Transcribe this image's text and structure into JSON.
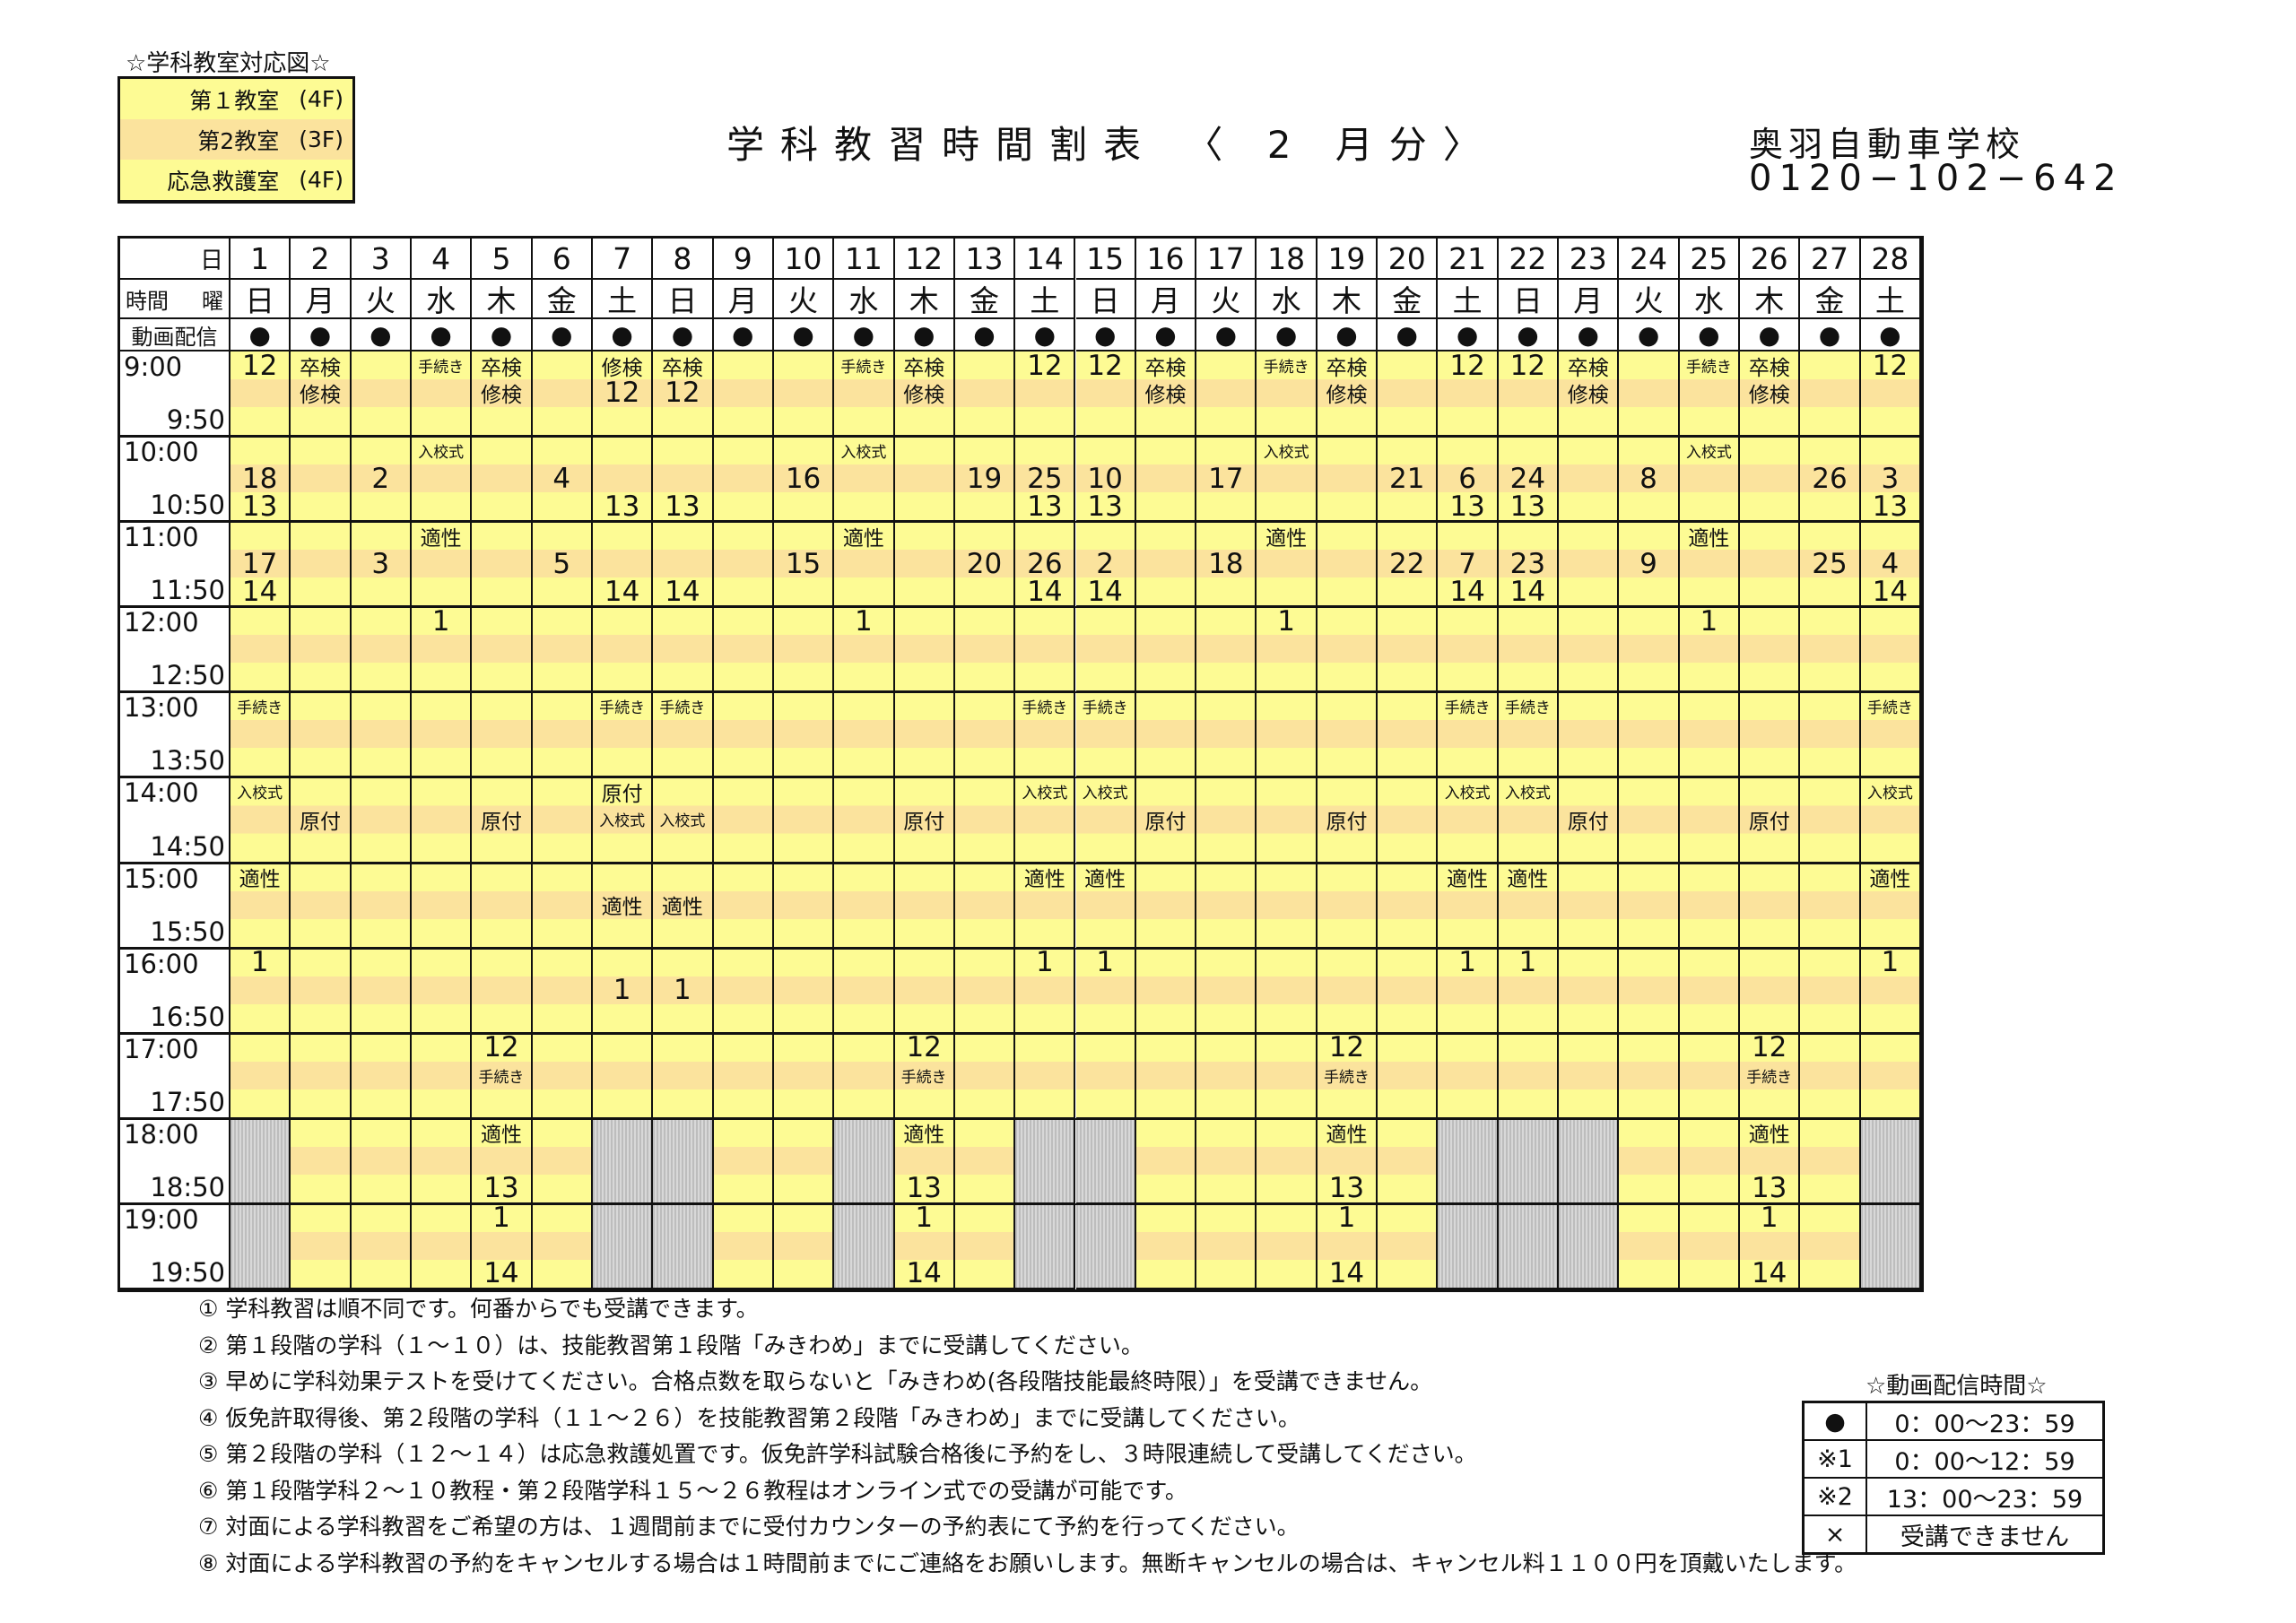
{
  "room_legend": {
    "caption": "☆学科教室対応図☆",
    "rooms": [
      {
        "name": "第１教室",
        "floor": "(4F)"
      },
      {
        "name": "第2教室",
        "floor": "(3F)"
      },
      {
        "name": "応急救護室",
        "floor": "(4F)"
      }
    ]
  },
  "header": {
    "title": "学科教習時間割表 〈 2 月分〉",
    "school": "奥羽自動車学校",
    "phone": "0120−102−642"
  },
  "grid": {
    "corner": {
      "day_label": "日",
      "time_label": "時間",
      "weekday_label": "曜",
      "video_label": "動画配信"
    },
    "days": [
      "1",
      "2",
      "3",
      "4",
      "5",
      "6",
      "7",
      "8",
      "9",
      "10",
      "11",
      "12",
      "13",
      "14",
      "15",
      "16",
      "17",
      "18",
      "19",
      "20",
      "21",
      "22",
      "23",
      "24",
      "25",
      "26",
      "27",
      "28"
    ],
    "weekdays": [
      "日",
      "月",
      "火",
      "水",
      "木",
      "金",
      "土",
      "日",
      "月",
      "火",
      "水",
      "木",
      "金",
      "土",
      "日",
      "月",
      "火",
      "水",
      "木",
      "金",
      "土",
      "日",
      "月",
      "火",
      "水",
      "木",
      "金",
      "土"
    ],
    "video_mark": "●",
    "slots": [
      {
        "start": "9:00",
        "end": "9:50",
        "gray_days": [],
        "cells": {
          "1": [
            "12",
            "",
            ""
          ],
          "2": [
            "卒検",
            "修検",
            ""
          ],
          "4": [
            "手続き",
            "",
            ""
          ],
          "5": [
            "卒検",
            "修検",
            ""
          ],
          "7": [
            "修検",
            "12",
            ""
          ],
          "8": [
            "卒検",
            "12",
            ""
          ],
          "11": [
            "手続き",
            "",
            ""
          ],
          "12": [
            "卒検",
            "修検",
            ""
          ],
          "14": [
            "12",
            "",
            ""
          ],
          "15": [
            "12",
            "",
            ""
          ],
          "16": [
            "卒検",
            "修検",
            ""
          ],
          "18": [
            "手続き",
            "",
            ""
          ],
          "19": [
            "卒検",
            "修検",
            ""
          ],
          "21": [
            "12",
            "",
            ""
          ],
          "22": [
            "12",
            "",
            ""
          ],
          "23": [
            "卒検",
            "修検",
            ""
          ],
          "25": [
            "手続き",
            "",
            ""
          ],
          "26": [
            "卒検",
            "修検",
            ""
          ],
          "28": [
            "12",
            "",
            ""
          ]
        }
      },
      {
        "start": "10:00",
        "end": "10:50",
        "gray_days": [],
        "cells": {
          "1": [
            "",
            "18",
            "13"
          ],
          "3": [
            "",
            "2",
            ""
          ],
          "4": [
            "入校式",
            "",
            ""
          ],
          "6": [
            "",
            "4",
            ""
          ],
          "7": [
            "",
            "",
            "13"
          ],
          "8": [
            "",
            "",
            "13"
          ],
          "10": [
            "",
            "16",
            ""
          ],
          "11": [
            "入校式",
            "",
            ""
          ],
          "13": [
            "",
            "19",
            ""
          ],
          "14": [
            "",
            "25",
            "13"
          ],
          "15": [
            "",
            "10",
            "13"
          ],
          "17": [
            "",
            "17",
            ""
          ],
          "18": [
            "入校式",
            "",
            ""
          ],
          "20": [
            "",
            "21",
            ""
          ],
          "21": [
            "",
            "6",
            "13"
          ],
          "22": [
            "",
            "24",
            "13"
          ],
          "24": [
            "",
            "8",
            ""
          ],
          "25": [
            "入校式",
            "",
            ""
          ],
          "27": [
            "",
            "26",
            ""
          ],
          "28": [
            "",
            "3",
            "13"
          ]
        }
      },
      {
        "start": "11:00",
        "end": "11:50",
        "gray_days": [],
        "cells": {
          "1": [
            "",
            "17",
            "14"
          ],
          "3": [
            "",
            "3",
            ""
          ],
          "4": [
            "適性",
            "",
            ""
          ],
          "6": [
            "",
            "5",
            ""
          ],
          "7": [
            "",
            "",
            "14"
          ],
          "8": [
            "",
            "",
            "14"
          ],
          "10": [
            "",
            "15",
            ""
          ],
          "11": [
            "適性",
            "",
            ""
          ],
          "13": [
            "",
            "20",
            ""
          ],
          "14": [
            "",
            "26",
            "14"
          ],
          "15": [
            "",
            "2",
            "14"
          ],
          "17": [
            "",
            "18",
            ""
          ],
          "18": [
            "適性",
            "",
            ""
          ],
          "20": [
            "",
            "22",
            ""
          ],
          "21": [
            "",
            "7",
            "14"
          ],
          "22": [
            "",
            "23",
            "14"
          ],
          "24": [
            "",
            "9",
            ""
          ],
          "25": [
            "適性",
            "",
            ""
          ],
          "27": [
            "",
            "25",
            ""
          ],
          "28": [
            "",
            "4",
            "14"
          ]
        }
      },
      {
        "start": "12:00",
        "end": "12:50",
        "gray_days": [],
        "cells": {
          "4": [
            "1",
            "",
            ""
          ],
          "11": [
            "1",
            "",
            ""
          ],
          "18": [
            "1",
            "",
            ""
          ],
          "25": [
            "1",
            "",
            ""
          ]
        }
      },
      {
        "start": "13:00",
        "end": "13:50",
        "gray_days": [],
        "cells": {
          "1": [
            "手続き",
            "",
            ""
          ],
          "7": [
            "手続き",
            "",
            ""
          ],
          "8": [
            "手続き",
            "",
            ""
          ],
          "14": [
            "手続き",
            "",
            ""
          ],
          "15": [
            "手続き",
            "",
            ""
          ],
          "21": [
            "手続き",
            "",
            ""
          ],
          "22": [
            "手続き",
            "",
            ""
          ],
          "28": [
            "手続き",
            "",
            ""
          ]
        }
      },
      {
        "start": "14:00",
        "end": "14:50",
        "gray_days": [],
        "cells": {
          "1": [
            "入校式",
            "",
            ""
          ],
          "2": [
            "",
            "原付",
            ""
          ],
          "5": [
            "",
            "原付",
            ""
          ],
          "7": [
            "原付",
            "入校式",
            ""
          ],
          "8": [
            "",
            "入校式",
            ""
          ],
          "12": [
            "",
            "原付",
            ""
          ],
          "14": [
            "入校式",
            "",
            ""
          ],
          "15": [
            "入校式",
            "",
            ""
          ],
          "16": [
            "",
            "原付",
            ""
          ],
          "19": [
            "",
            "原付",
            ""
          ],
          "21": [
            "入校式",
            "",
            ""
          ],
          "22": [
            "入校式",
            "",
            ""
          ],
          "23": [
            "",
            "原付",
            ""
          ],
          "26": [
            "",
            "原付",
            ""
          ],
          "28": [
            "入校式",
            "",
            ""
          ]
        }
      },
      {
        "start": "15:00",
        "end": "15:50",
        "gray_days": [],
        "cells": {
          "1": [
            "適性",
            "",
            ""
          ],
          "7": [
            "",
            "適性",
            ""
          ],
          "8": [
            "",
            "適性",
            ""
          ],
          "14": [
            "適性",
            "",
            ""
          ],
          "15": [
            "適性",
            "",
            ""
          ],
          "21": [
            "適性",
            "",
            ""
          ],
          "22": [
            "適性",
            "",
            ""
          ],
          "28": [
            "適性",
            "",
            ""
          ]
        }
      },
      {
        "start": "16:00",
        "end": "16:50",
        "gray_days": [],
        "cells": {
          "1": [
            "1",
            "",
            ""
          ],
          "7": [
            "",
            "1",
            ""
          ],
          "8": [
            "",
            "1",
            ""
          ],
          "14": [
            "1",
            "",
            ""
          ],
          "15": [
            "1",
            "",
            ""
          ],
          "21": [
            "1",
            "",
            ""
          ],
          "22": [
            "1",
            "",
            ""
          ],
          "28": [
            "1",
            "",
            ""
          ]
        }
      },
      {
        "start": "17:00",
        "end": "17:50",
        "gray_days": [],
        "cells": {
          "5": [
            "12",
            "手続き",
            ""
          ],
          "12": [
            "12",
            "手続き",
            ""
          ],
          "19": [
            "12",
            "手続き",
            ""
          ],
          "26": [
            "12",
            "手続き",
            ""
          ]
        }
      },
      {
        "start": "18:00",
        "end": "18:50",
        "gray_days": [
          1,
          7,
          8,
          11,
          14,
          15,
          21,
          22,
          23,
          28
        ],
        "cells": {
          "5": [
            "適性",
            "",
            "13"
          ],
          "12": [
            "適性",
            "",
            "13"
          ],
          "19": [
            "適性",
            "",
            "13"
          ],
          "26": [
            "適性",
            "",
            "13"
          ]
        }
      },
      {
        "start": "19:00",
        "end": "19:50",
        "gray_days": [
          1,
          7,
          8,
          11,
          14,
          15,
          21,
          22,
          23,
          28
        ],
        "cells": {
          "5": [
            "1",
            "",
            "14"
          ],
          "12": [
            "1",
            "",
            "14"
          ],
          "19": [
            "1",
            "",
            "14"
          ],
          "26": [
            "1",
            "",
            "14"
          ]
        }
      }
    ]
  },
  "notes": [
    "① 学科教習は順不同です。何番からでも受講できます。",
    "② 第１段階の学科（１～１０）は、技能教習第１段階「みきわめ」までに受講してください。",
    "③ 早めに学科効果テストを受けてください。合格点数を取らないと「みきわめ(各段階技能最終時限）」を受講できません。",
    "④ 仮免許取得後、第２段階の学科（１１～２６）を技能教習第２段階「みきわめ」までに受講してください。",
    "⑤ 第２段階の学科（１２～１４）は応急救護処置です。仮免許学科試験合格後に予約をし、３時限連続して受講してください。",
    "⑥ 第１段階学科２～１０教程・第２段階学科１５～２６教程はオンライン式での受講が可能です。",
    "⑦ 対面による学科教習をご希望の方は、１週間前までに受付カウンターの予約表にて予約を行ってください。",
    "⑧ 対面による学科教習の予約をキャンセルする場合は１時間前までにご連絡をお願いします。無断キャンセルの場合は、キャンセル料１１００円を頂戴いたします。"
  ],
  "video_times": {
    "caption": "☆動画配信時間☆",
    "rows": [
      {
        "mark": "●",
        "time": "0：00～23：59"
      },
      {
        "mark": "※1",
        "time": "0：00～12：59"
      },
      {
        "mark": "※2",
        "time": "13：00～23：59"
      },
      {
        "mark": "×",
        "time": "受講できません"
      }
    ]
  }
}
